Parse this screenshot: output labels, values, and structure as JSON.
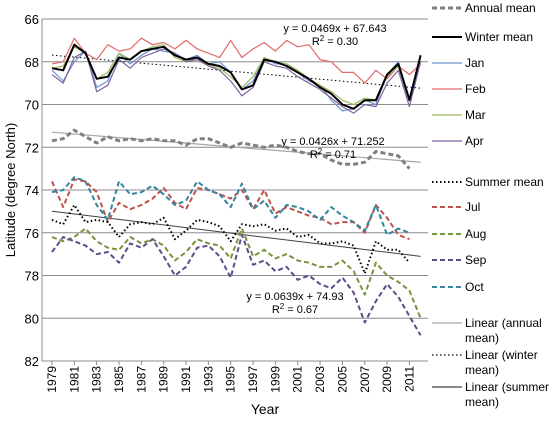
{
  "chart_data": {
    "type": "line",
    "xlabel": "Year",
    "ylabel": "Latitude (degree North)",
    "ylim": [
      66,
      82
    ],
    "y_inverted": true,
    "y_ticks": [
      66,
      68,
      70,
      72,
      74,
      76,
      78,
      80,
      82
    ],
    "x_tick_labels": [
      "1979",
      "1981",
      "1983",
      "1985",
      "1987",
      "1989",
      "1991",
      "1993",
      "1995",
      "1997",
      "1999",
      "2001",
      "2003",
      "2005",
      "2007",
      "2009",
      "2011"
    ],
    "grid": "horizontal",
    "legend_position": "right",
    "x": [
      1979,
      1980,
      1981,
      1982,
      1983,
      1984,
      1985,
      1986,
      1987,
      1988,
      1989,
      1990,
      1991,
      1992,
      1993,
      1994,
      1995,
      1996,
      1997,
      1998,
      1999,
      2000,
      2001,
      2002,
      2003,
      2004,
      2005,
      2006,
      2007,
      2008,
      2009,
      2010,
      2011,
      2012
    ],
    "series": [
      {
        "name": "Jan",
        "color": "#6f93d0",
        "style": "solid",
        "width": 1.2,
        "values": [
          68.4,
          68.9,
          68.0,
          67.5,
          69.2,
          68.9,
          67.6,
          68.1,
          67.7,
          67.4,
          67.5,
          67.6,
          67.9,
          67.7,
          68.1,
          68.0,
          68.5,
          69.3,
          68.9,
          67.8,
          68.1,
          68.1,
          68.5,
          68.9,
          69.1,
          69.8,
          70.3,
          70.2,
          69.8,
          70.0,
          68.6,
          68.0,
          69.7,
          67.7
        ]
      },
      {
        "name": "Feb",
        "color": "#e06b6b",
        "style": "solid",
        "width": 1.2,
        "values": [
          68.1,
          68.0,
          66.9,
          67.6,
          67.9,
          67.2,
          67.5,
          67.4,
          66.9,
          67.2,
          67.1,
          67.4,
          67.0,
          67.4,
          67.6,
          67.8,
          67.0,
          67.8,
          67.4,
          67.1,
          67.5,
          67.0,
          67.3,
          67.2,
          67.9,
          68.0,
          68.5,
          68.5,
          69.0,
          68.4,
          68.8,
          68.2,
          68.6,
          68.1
        ]
      },
      {
        "name": "Mar",
        "color": "#9bbb59",
        "style": "solid",
        "width": 1.2,
        "values": [
          68.3,
          68.2,
          67.3,
          67.6,
          68.8,
          68.5,
          67.6,
          67.9,
          67.5,
          67.3,
          67.2,
          67.8,
          68.0,
          67.8,
          68.2,
          68.3,
          68.7,
          69.2,
          68.7,
          67.8,
          68.0,
          68.1,
          68.4,
          68.8,
          69.1,
          69.4,
          69.8,
          70.0,
          69.7,
          69.8,
          68.7,
          68.2,
          69.8,
          67.8
        ]
      },
      {
        "name": "Apr",
        "color": "#8064a2",
        "style": "solid",
        "width": 1.2,
        "values": [
          68.6,
          69.0,
          67.8,
          67.5,
          69.4,
          69.1,
          67.9,
          68.3,
          67.8,
          67.6,
          67.4,
          67.6,
          68.0,
          67.9,
          68.2,
          68.4,
          68.9,
          69.6,
          69.2,
          68.0,
          68.2,
          68.3,
          68.7,
          69.0,
          69.3,
          69.7,
          70.1,
          70.4,
          70.0,
          70.1,
          69.0,
          68.4,
          70.1,
          68.0
        ]
      },
      {
        "name": "Winter mean",
        "color": "#000000",
        "style": "solid",
        "width": 2,
        "values": [
          68.3,
          68.4,
          67.2,
          67.6,
          68.8,
          68.7,
          67.8,
          67.9,
          67.5,
          67.4,
          67.3,
          67.7,
          67.9,
          67.8,
          68.1,
          68.2,
          68.5,
          69.3,
          69.1,
          67.9,
          68.0,
          68.2,
          68.5,
          68.8,
          69.2,
          69.5,
          70.0,
          70.2,
          69.8,
          69.8,
          68.6,
          68.1,
          69.8,
          67.7
        ]
      },
      {
        "name": "Annual mean",
        "color": "#808080",
        "style": "dash",
        "width": 3,
        "values": [
          71.7,
          71.6,
          71.2,
          71.5,
          71.8,
          71.5,
          71.7,
          71.6,
          71.7,
          71.6,
          71.7,
          71.7,
          71.9,
          71.6,
          71.6,
          71.8,
          72.0,
          71.8,
          71.9,
          72.0,
          71.9,
          72.0,
          72.2,
          72.3,
          72.3,
          72.6,
          72.8,
          72.8,
          72.7,
          72.2,
          72.3,
          72.4,
          73.0,
          null
        ]
      },
      {
        "name": "Jul",
        "color": "#c0504d",
        "style": "dash",
        "width": 2,
        "values": [
          73.6,
          74.8,
          73.5,
          73.6,
          74.1,
          75.5,
          74.6,
          74.9,
          74.7,
          74.4,
          73.9,
          74.6,
          74.9,
          73.9,
          74.0,
          74.2,
          74.4,
          74.0,
          74.9,
          74.0,
          75.1,
          74.8,
          75.0,
          75.2,
          75.3,
          75.6,
          75.5,
          75.5,
          76.0,
          74.7,
          75.3,
          76.1,
          76.3,
          null
        ]
      },
      {
        "name": "Oct",
        "color": "#31859c",
        "style": "dash",
        "width": 2,
        "values": [
          74.1,
          74.0,
          73.4,
          73.6,
          74.7,
          75.4,
          73.6,
          74.2,
          74.1,
          73.8,
          74.2,
          74.7,
          74.5,
          73.6,
          74.0,
          74.2,
          74.8,
          73.7,
          74.9,
          74.5,
          75.3,
          74.7,
          74.8,
          75.0,
          75.4,
          74.8,
          75.2,
          75.5,
          75.9,
          74.7,
          76.1,
          75.8,
          76.0,
          null
        ]
      },
      {
        "name": "Summer mean",
        "color": "#000000",
        "style": "dot",
        "width": 2,
        "values": [
          75.4,
          75.6,
          74.7,
          75.5,
          75.4,
          75.5,
          76.2,
          75.6,
          75.5,
          75.6,
          75.3,
          76.3,
          75.9,
          75.4,
          75.5,
          75.7,
          76.4,
          75.6,
          75.7,
          75.6,
          75.9,
          75.8,
          76.2,
          76.1,
          76.5,
          76.5,
          76.4,
          76.6,
          77.9,
          76.4,
          76.8,
          76.8,
          77.4,
          null
        ]
      },
      {
        "name": "Aug",
        "color": "#77933c",
        "style": "dash",
        "width": 2,
        "values": [
          76.2,
          76.4,
          76.2,
          75.8,
          76.4,
          76.7,
          76.8,
          76.2,
          76.5,
          76.3,
          76.6,
          77.3,
          76.9,
          76.3,
          76.5,
          76.6,
          77.2,
          75.8,
          77.1,
          76.8,
          77.2,
          77.0,
          77.3,
          77.4,
          77.6,
          77.6,
          77.3,
          77.8,
          78.9,
          77.4,
          78.0,
          78.3,
          78.7,
          80.0
        ]
      },
      {
        "name": "Sep",
        "color": "#5f4b8b",
        "style": "dash",
        "width": 2,
        "values": [
          76.9,
          76.2,
          76.4,
          76.6,
          77.0,
          76.9,
          77.4,
          76.5,
          76.7,
          76.3,
          77.1,
          78.0,
          77.6,
          76.7,
          76.6,
          77.1,
          78.1,
          76.1,
          77.5,
          77.3,
          77.8,
          77.6,
          78.2,
          78.0,
          78.4,
          78.6,
          78.1,
          78.8,
          80.2,
          79.2,
          78.4,
          79.0,
          79.9,
          80.8
        ]
      },
      {
        "name": "Linear (annual mean)",
        "color": "#a6a6a6",
        "style": "solid",
        "width": 1.2,
        "trend": {
          "slope": 0.0426,
          "intercept": 71.252,
          "from": 1979,
          "to": 2012
        }
      },
      {
        "name": "Linear (winter mean)",
        "color": "#000000",
        "style": "dot",
        "width": 1,
        "trend": {
          "slope": 0.0469,
          "intercept": 67.643,
          "from": 1979,
          "to": 2012
        }
      },
      {
        "name": "Linear (summer mean)",
        "color": "#404040",
        "style": "solid",
        "width": 1,
        "trend": {
          "slope": 0.0639,
          "intercept": 74.93,
          "from": 1979,
          "to": 2012
        }
      }
    ],
    "legend": [
      {
        "label": "Annual mean",
        "series": "Annual mean"
      },
      {
        "label": "Winter mean",
        "series": "Winter mean"
      },
      {
        "label": "Jan",
        "series": "Jan"
      },
      {
        "label": "Feb",
        "series": "Feb"
      },
      {
        "label": "Mar",
        "series": "Mar"
      },
      {
        "label": "Apr",
        "series": "Apr"
      },
      {
        "label": "Summer mean",
        "series": "Summer mean"
      },
      {
        "label": "Jul",
        "series": "Jul"
      },
      {
        "label": "Aug",
        "series": "Aug"
      },
      {
        "label": "Sep",
        "series": "Sep"
      },
      {
        "label": "Oct",
        "series": "Oct"
      },
      {
        "label": "Linear (annual\nmean)",
        "series": "Linear (annual mean)"
      },
      {
        "label": "Linear (winter\nmean)",
        "series": "Linear (winter mean)"
      },
      {
        "label": "Linear (summer\nmean)",
        "series": "Linear (summer mean)"
      }
    ],
    "annotations": [
      {
        "eq": "y = 0.0469x + 67.643",
        "r2": "0.30"
      },
      {
        "eq": "y = 0.0426x + 71.252",
        "r2": "0.71"
      },
      {
        "eq": "y = 0.0639x + 74.93",
        "r2": "0.67"
      }
    ]
  }
}
